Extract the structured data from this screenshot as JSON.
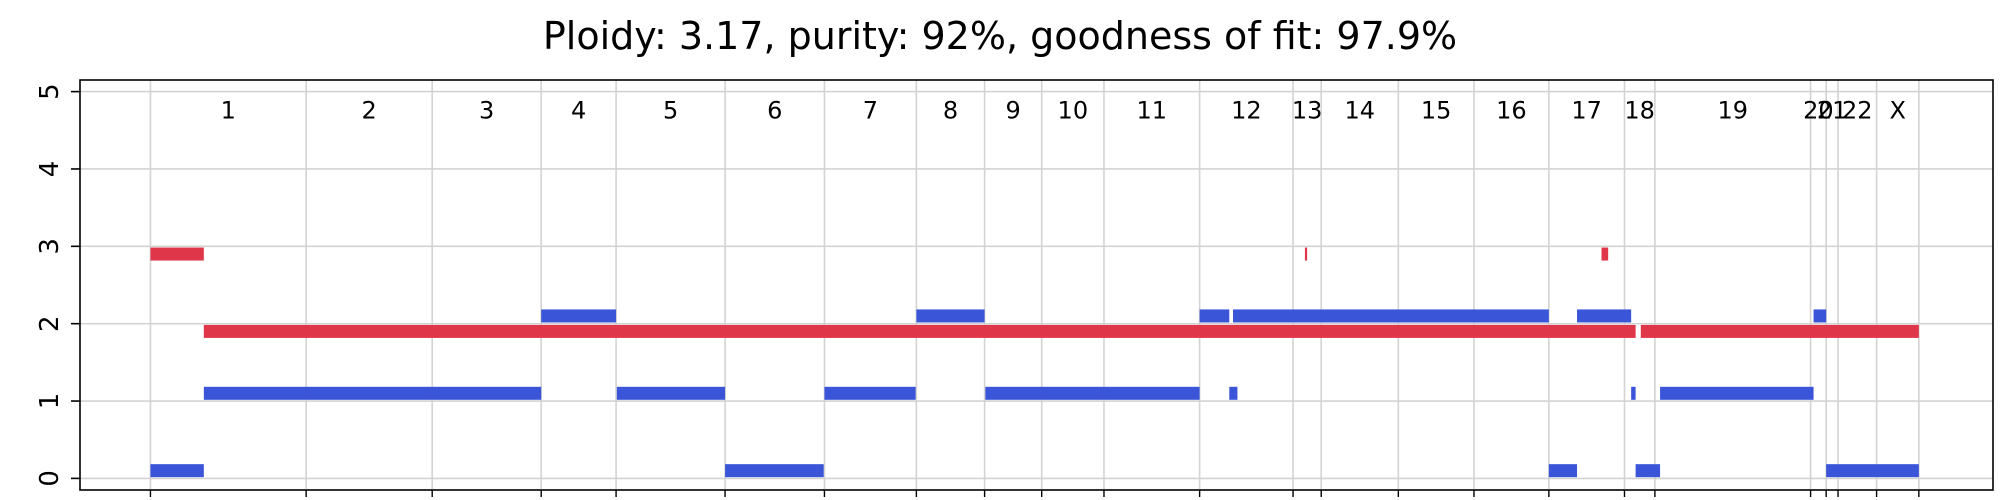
{
  "chart_data": {
    "type": "bar",
    "title": "Ploidy: 3.17, purity: 92%, goodness of fit: 97.9%",
    "xlabel": "",
    "ylabel": "",
    "ylim": [
      -0.15,
      5.15
    ],
    "yticks": [
      0,
      1,
      2,
      3,
      4,
      5
    ],
    "grid": true,
    "colors": {
      "major": "#e0364a",
      "minor": "#3a55d8",
      "grid": "#d3d3d3"
    },
    "chromosomes": [
      {
        "name": "1",
        "start": 0,
        "end": 2.1
      },
      {
        "name": "2",
        "start": 2.1,
        "end": 3.8
      },
      {
        "name": "3",
        "start": 3.8,
        "end": 5.27
      },
      {
        "name": "4",
        "start": 5.27,
        "end": 6.28
      },
      {
        "name": "5",
        "start": 6.28,
        "end": 7.75
      },
      {
        "name": "6",
        "start": 7.75,
        "end": 9.09
      },
      {
        "name": "7",
        "start": 9.09,
        "end": 10.33
      },
      {
        "name": "8",
        "start": 10.33,
        "end": 11.25
      },
      {
        "name": "9",
        "start": 11.25,
        "end": 12.02
      },
      {
        "name": "10",
        "start": 12.02,
        "end": 12.86
      },
      {
        "name": "11",
        "start": 12.86,
        "end": 14.15
      },
      {
        "name": "12",
        "start": 14.15,
        "end": 15.41
      },
      {
        "name": "13",
        "start": 15.41,
        "end": 15.79
      },
      {
        "name": "14",
        "start": 15.79,
        "end": 16.83
      },
      {
        "name": "15",
        "start": 16.83,
        "end": 17.85
      },
      {
        "name": "16",
        "start": 17.85,
        "end": 18.86
      },
      {
        "name": "17",
        "start": 18.86,
        "end": 19.88
      },
      {
        "name": "18",
        "start": 19.88,
        "end": 20.29
      },
      {
        "name": "19",
        "start": 20.29,
        "end": 22.39
      },
      {
        "name": "20",
        "start": 22.39,
        "end": 22.6
      },
      {
        "name": "21",
        "start": 22.6,
        "end": 22.76
      },
      {
        "name": "22",
        "start": 22.76,
        "end": 23.28
      },
      {
        "name": "X",
        "start": 23.28,
        "end": 23.85
      }
    ],
    "x_extent": [
      -0.95,
      24.85
    ],
    "series": [
      {
        "role": "major",
        "segments": [
          {
            "start": 0,
            "end": 0.72,
            "cn": 2.9
          },
          {
            "start": 0.72,
            "end": 20.03,
            "cn": 1.9
          },
          {
            "start": 15.57,
            "end": 15.6,
            "cn": 2.9
          },
          {
            "start": 19.57,
            "end": 19.66,
            "cn": 2.9
          },
          {
            "start": 20.1,
            "end": 23.85,
            "cn": 1.9
          }
        ]
      },
      {
        "role": "minor",
        "segments": [
          {
            "start": 0,
            "end": 0.72,
            "cn": 0.1
          },
          {
            "start": 0.72,
            "end": 5.27,
            "cn": 1.1
          },
          {
            "start": 5.27,
            "end": 6.28,
            "cn": 2.1
          },
          {
            "start": 6.29,
            "end": 7.75,
            "cn": 1.1
          },
          {
            "start": 7.75,
            "end": 9.08,
            "cn": 0.1
          },
          {
            "start": 9.09,
            "end": 10.32,
            "cn": 1.1
          },
          {
            "start": 10.33,
            "end": 11.25,
            "cn": 2.1
          },
          {
            "start": 11.26,
            "end": 14.15,
            "cn": 1.1
          },
          {
            "start": 14.15,
            "end": 14.55,
            "cn": 2.1
          },
          {
            "start": 14.6,
            "end": 18.86,
            "cn": 2.1
          },
          {
            "start": 14.55,
            "end": 14.66,
            "cn": 1.1
          },
          {
            "start": 18.86,
            "end": 19.24,
            "cn": 0.1
          },
          {
            "start": 19.24,
            "end": 19.97,
            "cn": 2.1
          },
          {
            "start": 19.97,
            "end": 20.03,
            "cn": 1.1
          },
          {
            "start": 20.03,
            "end": 20.36,
            "cn": 0.1
          },
          {
            "start": 20.36,
            "end": 22.43,
            "cn": 1.1
          },
          {
            "start": 22.43,
            "end": 22.6,
            "cn": 2.1
          },
          {
            "start": 22.6,
            "end": 23.85,
            "cn": 0.1
          }
        ]
      }
    ]
  }
}
